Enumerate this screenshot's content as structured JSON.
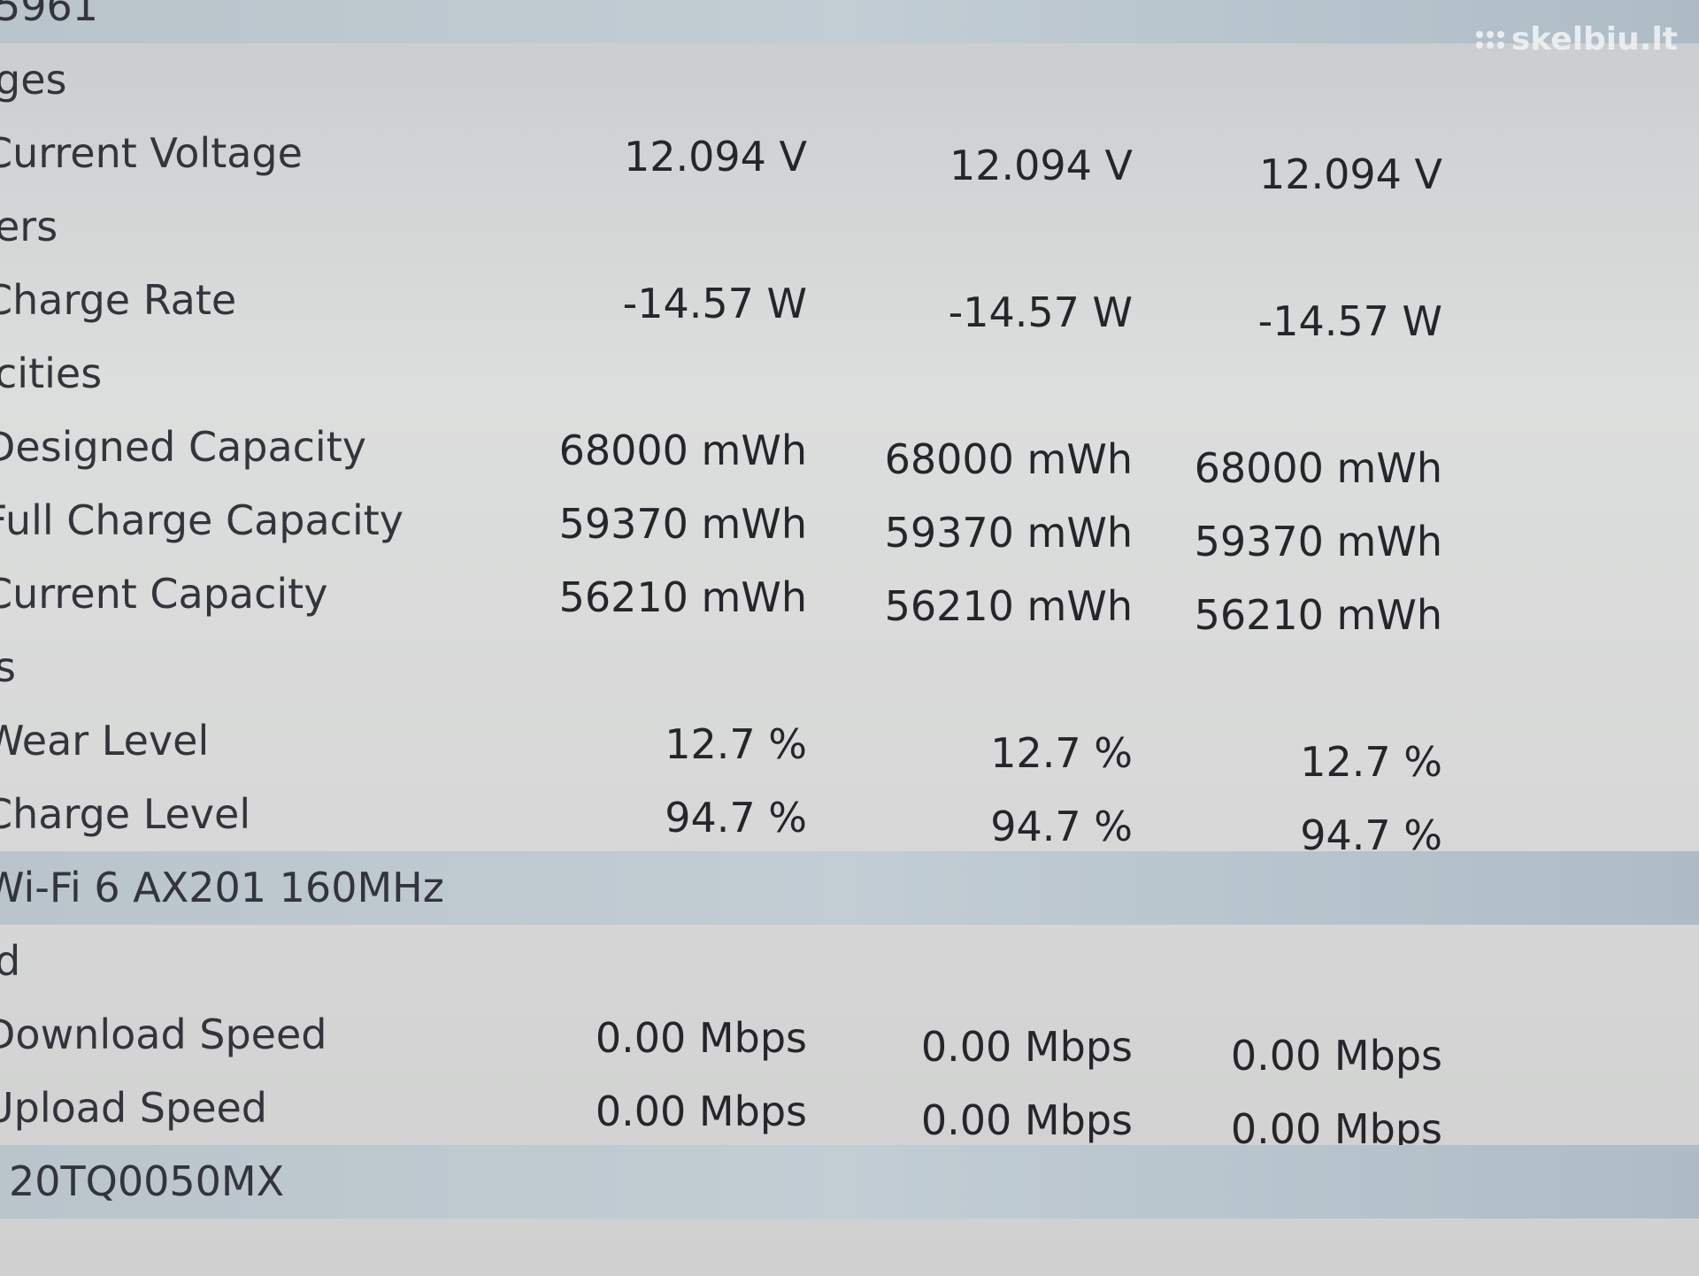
{
  "watermark": "skelbiu.lt",
  "rows": [
    {
      "label": "5961",
      "highlight": true,
      "values": []
    },
    {
      "label": "ges",
      "values": []
    },
    {
      "label": "Current Voltage",
      "values": [
        "12.094 V",
        "12.094 V",
        "12.094 V"
      ]
    },
    {
      "label": "ers",
      "values": []
    },
    {
      "label": "Charge Rate",
      "values": [
        "-14.57 W",
        "-14.57 W",
        "-14.57 W"
      ]
    },
    {
      "label": "cities",
      "values": []
    },
    {
      "label": "Designed Capacity",
      "values": [
        "68000 mWh",
        "68000 mWh",
        "68000 mWh"
      ]
    },
    {
      "label": "Full Charge Capacity",
      "values": [
        "59370 mWh",
        "59370 mWh",
        "59370 mWh"
      ]
    },
    {
      "label": "Current Capacity",
      "values": [
        "56210 mWh",
        "56210 mWh",
        "56210 mWh"
      ]
    },
    {
      "label": "s",
      "values": []
    },
    {
      "label": "Wear Level",
      "values": [
        "12.7 %",
        "12.7 %",
        "12.7 %"
      ]
    },
    {
      "label": "Charge Level",
      "values": [
        "94.7 %",
        "94.7 %",
        "94.7 %"
      ]
    },
    {
      "label": "Wi-Fi 6 AX201 160MHz",
      "highlight": true,
      "values": []
    },
    {
      "label": "d",
      "values": []
    },
    {
      "label": "Download Speed",
      "values": [
        "0.00 Mbps",
        "0.00 Mbps",
        "0.00 Mbps"
      ]
    },
    {
      "label": "Upload Speed",
      "values": [
        "0.00 Mbps",
        "0.00 Mbps",
        "0.00 Mbps"
      ]
    },
    {
      "label": "20TQ0050MX",
      "highlight": true,
      "values": []
    }
  ]
}
